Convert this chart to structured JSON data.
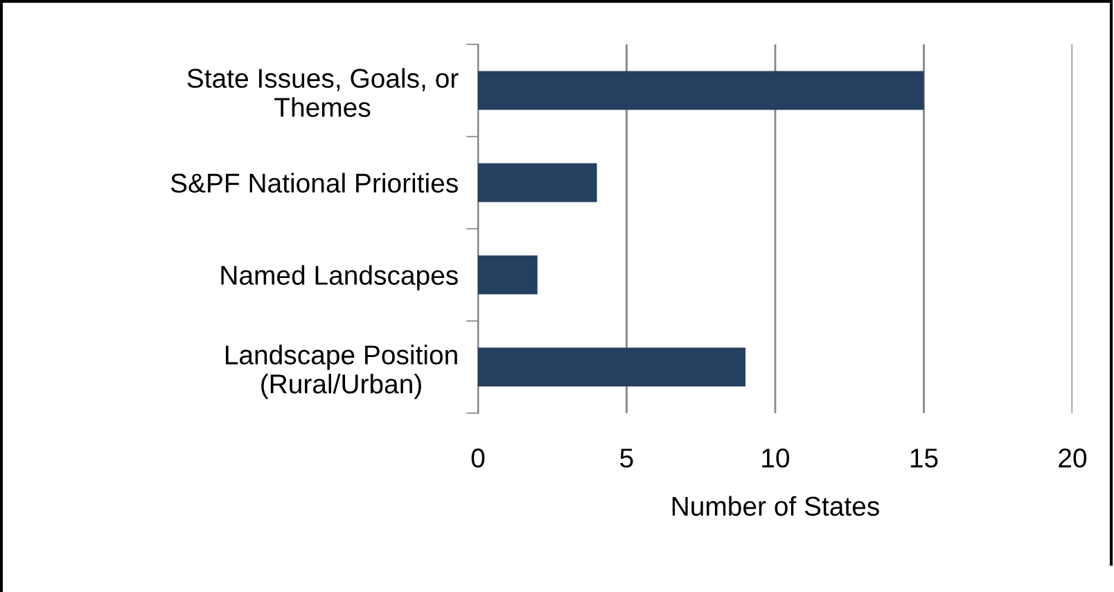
{
  "chart_data": {
    "type": "bar",
    "orientation": "horizontal",
    "xlabel": "Number of States",
    "categories": [
      "State Issues, Goals, or\nThemes",
      "S&PF National Priorities",
      "Named Landscapes",
      "Landscape Position\n(Rural/Urban)"
    ],
    "values": [
      15,
      4,
      2,
      9
    ],
    "color": "#243f60",
    "xlim": [
      0,
      20
    ],
    "xticks": [
      0,
      5,
      10,
      15,
      20
    ],
    "grid": "x"
  }
}
